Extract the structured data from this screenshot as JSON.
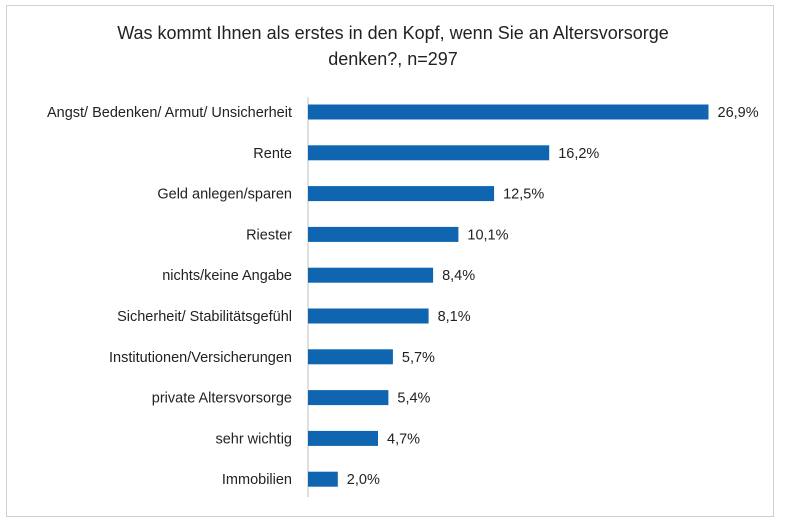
{
  "chart_data": {
    "type": "bar",
    "orientation": "horizontal",
    "title": "Was kommt Ihnen als erstes in den Kopf, wenn Sie an Altersvorsorge denken?, n=297",
    "title_lines": [
      "Was kommt Ihnen als erstes in den Kopf, wenn Sie an Altersvorsorge",
      "denken?, n=297"
    ],
    "categories": [
      "Angst/ Bedenken/ Armut/ Unsicherheit",
      "Rente",
      "Geld anlegen/sparen",
      "Riester",
      "nichts/keine Angabe",
      "Sicherheit/ Stabilitätsgefühl",
      "Institutionen/Versicherungen",
      "private Altersvorsorge",
      "sehr wichtig",
      "Immobilien"
    ],
    "values": [
      26.9,
      16.2,
      12.5,
      10.1,
      8.4,
      8.1,
      5.7,
      5.4,
      4.7,
      2.0
    ],
    "value_labels": [
      "26,9%",
      "16,2%",
      "12,5%",
      "10,1%",
      "8,4%",
      "8,1%",
      "5,7%",
      "5,4%",
      "4,7%",
      "2,0%"
    ],
    "xlim": [
      0,
      27
    ],
    "xlabel": "",
    "ylabel": "",
    "grid": false,
    "legend": "none",
    "bar_color": "#0f65b0",
    "axis_color": "#bfbfbf"
  }
}
